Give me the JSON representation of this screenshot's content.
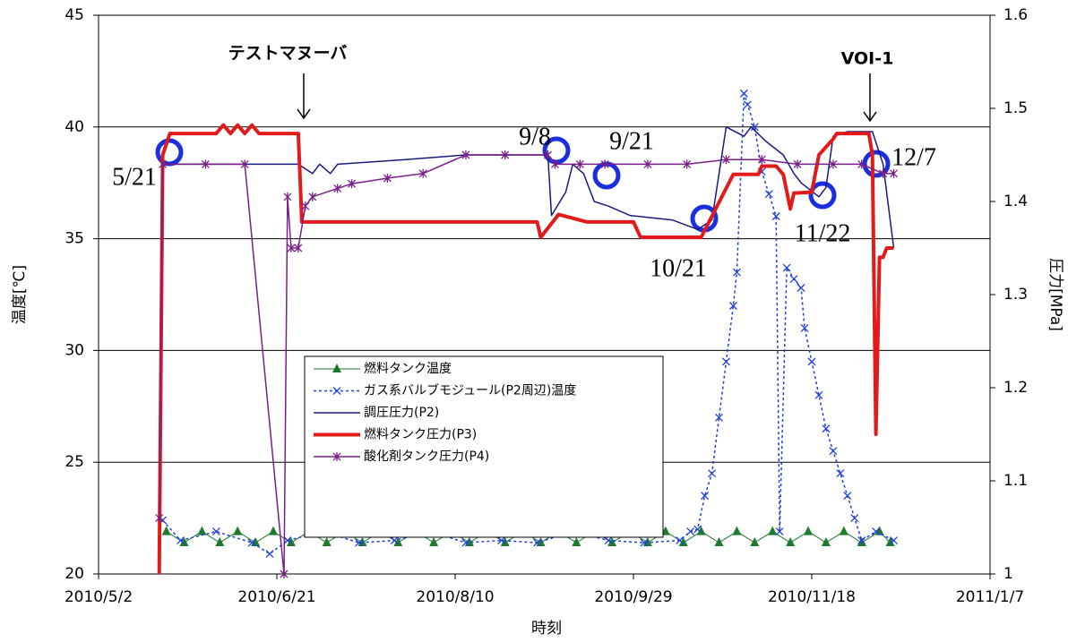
{
  "chart_data": {
    "type": "line",
    "xlabel": "時刻",
    "ylabel": "温度[℃]",
    "y2label": "圧力[MPa]",
    "xlim": [
      "2010/5/2",
      "2011/1/7"
    ],
    "xticks": [
      "2010/5/2",
      "2010/6/21",
      "2010/8/10",
      "2010/9/29",
      "2010/11/18",
      "2011/1/7"
    ],
    "ylim": [
      20,
      45
    ],
    "yticks": [
      20,
      25,
      30,
      35,
      40,
      45
    ],
    "y2lim": [
      1,
      1.6
    ],
    "y2ticks": [
      1,
      1.1,
      1.2,
      1.3,
      1.4,
      1.5,
      1.6
    ],
    "grid": true,
    "legend": "center",
    "annotations": [
      {
        "text": "テストマヌーバ"
      },
      {
        "text": "VOI-1"
      },
      {
        "text": "5/21"
      },
      {
        "text": "9/8"
      },
      {
        "text": "9/21"
      },
      {
        "text": "10/21"
      },
      {
        "text": "11/22"
      },
      {
        "text": "12/7"
      }
    ],
    "series": [
      {
        "name": "燃料タンク温度",
        "color": "#1e7a2e",
        "marker": "triangle",
        "dash": "solid",
        "width": 1,
        "axis": "y",
        "x": [
          "2010/5/21",
          "2010/5/26",
          "2010/5/31",
          "2010/6/5",
          "2010/6/10",
          "2010/6/15",
          "2010/6/20",
          "2010/6/25",
          "2010/6/30",
          "2010/7/5",
          "2010/7/10",
          "2010/7/15",
          "2010/7/20",
          "2010/7/25",
          "2010/7/30",
          "2010/8/4",
          "2010/8/9",
          "2010/8/14",
          "2010/8/19",
          "2010/8/24",
          "2010/8/29",
          "2010/9/3",
          "2010/9/8",
          "2010/9/13",
          "2010/9/18",
          "2010/9/23",
          "2010/9/28",
          "2010/10/3",
          "2010/10/8",
          "2010/10/13",
          "2010/10/18",
          "2010/10/23",
          "2010/10/28",
          "2010/11/2",
          "2010/11/7",
          "2010/11/12",
          "2010/11/17",
          "2010/11/22",
          "2010/11/27",
          "2010/12/2",
          "2010/12/7",
          "2010/12/10"
        ],
        "values": [
          21.9,
          21.4,
          21.9,
          21.4,
          21.9,
          21.4,
          21.9,
          21.4,
          21.9,
          21.4,
          21.9,
          21.4,
          21.9,
          21.4,
          21.9,
          21.4,
          21.9,
          21.4,
          21.9,
          21.4,
          21.9,
          21.4,
          21.9,
          21.4,
          21.9,
          21.4,
          21.9,
          21.4,
          21.9,
          21.4,
          21.9,
          21.4,
          21.9,
          21.4,
          21.9,
          21.4,
          21.9,
          21.4,
          21.9,
          21.4,
          21.9,
          21.4
        ]
      },
      {
        "name": "ガス系バルブモジュール(P2周辺)温度",
        "color": "#1f3fd6",
        "marker": "x",
        "dash": "dotted",
        "width": 1.5,
        "axis": "y",
        "x": [
          "2010/5/20",
          "2010/5/25",
          "2010/6/4",
          "2010/6/14",
          "2010/6/19",
          "2010/6/24",
          "2010/7/4",
          "2010/7/14",
          "2010/7/24",
          "2010/8/3",
          "2010/8/13",
          "2010/8/23",
          "2010/9/2",
          "2010/9/12",
          "2010/9/22",
          "2010/10/2",
          "2010/10/12",
          "2010/10/15",
          "2010/10/17",
          "2010/10/19",
          "2010/10/21",
          "2010/10/23",
          "2010/10/25",
          "2010/10/27",
          "2010/10/28",
          "2010/10/30",
          "2010/10/31",
          "2010/11/2",
          "2010/11/4",
          "2010/11/6",
          "2010/11/8",
          "2010/11/9",
          "2010/11/11",
          "2010/11/13",
          "2010/11/15",
          "2010/11/16",
          "2010/11/18",
          "2010/11/20",
          "2010/11/22",
          "2010/11/24",
          "2010/11/26",
          "2010/11/28",
          "2010/11/30",
          "2010/12/2",
          "2010/12/6",
          "2010/12/11"
        ],
        "values": [
          22.4,
          21.5,
          21.9,
          21.4,
          20.9,
          21.5,
          21.9,
          21.4,
          21.5,
          21.9,
          21.4,
          21.5,
          21.4,
          21.9,
          21.5,
          21.4,
          21.5,
          21.9,
          22,
          23.5,
          24.5,
          27,
          29.5,
          32,
          33.5,
          41.5,
          41,
          40,
          38,
          37,
          36,
          21.9,
          33.7,
          33.2,
          32.8,
          31,
          29.5,
          28,
          26.5,
          25.5,
          24.5,
          23.5,
          22.5,
          21.5,
          21.9,
          21.5
        ]
      },
      {
        "name": "調圧圧力(P2)",
        "color": "#1a1a80",
        "marker": "none",
        "dash": "solid",
        "width": 1.5,
        "axis": "y2",
        "x": [
          "2010/5/19",
          "2010/5/20",
          "2010/6/27",
          "2010/7/1",
          "2010/7/3",
          "2010/7/6",
          "2010/7/8",
          "2010/7/27",
          "2010/8/13",
          "2010/9/5",
          "2010/9/6",
          "2010/9/10",
          "2010/9/12",
          "2010/9/15",
          "2010/9/18",
          "2010/9/22",
          "2010/9/28",
          "2010/10/10",
          "2010/10/17",
          "2010/10/21",
          "2010/10/25",
          "2010/10/30",
          "2010/11/1",
          "2010/11/5",
          "2010/11/10",
          "2010/11/13",
          "2010/11/15",
          "2010/11/20",
          "2010/11/22",
          "2010/11/24",
          "2010/11/28",
          "2010/12/5",
          "2010/12/8",
          "2010/12/11"
        ],
        "values": [
          1.0,
          1.44,
          1.44,
          1.43,
          1.44,
          1.43,
          1.44,
          1.445,
          1.45,
          1.45,
          1.385,
          1.41,
          1.44,
          1.43,
          1.4,
          1.395,
          1.385,
          1.38,
          1.37,
          1.38,
          1.48,
          1.47,
          1.48,
          1.465,
          1.45,
          1.43,
          1.42,
          1.405,
          1.415,
          1.47,
          1.475,
          1.475,
          1.44,
          1.35
        ]
      },
      {
        "name": "燃料タンク圧力(P3)",
        "color": "#e31a1a",
        "marker": "none",
        "dash": "solid",
        "width": 4,
        "axis": "y2",
        "x": [
          "2010/5/19",
          "2010/5/20",
          "2010/5/22",
          "2010/6/4",
          "2010/6/6",
          "2010/6/8",
          "2010/6/10",
          "2010/6/12",
          "2010/6/14",
          "2010/6/16",
          "2010/6/27",
          "2010/6/28",
          "2010/9/2",
          "2010/9/3",
          "2010/9/8",
          "2010/9/16",
          "2010/9/29",
          "2010/10/1",
          "2010/10/18",
          "2010/10/27",
          "2010/11/3",
          "2010/11/4",
          "2010/11/8",
          "2010/11/10",
          "2010/11/12",
          "2010/11/13",
          "2010/11/18",
          "2010/11/20",
          "2010/11/24",
          "2010/11/25",
          "2010/12/4",
          "2010/12/5",
          "2010/12/6",
          "2010/12/7",
          "2010/12/8",
          "2010/12/9",
          "2010/12/11"
        ],
        "values": [
          1.0,
          1.45,
          1.473,
          1.473,
          1.482,
          1.473,
          1.482,
          1.473,
          1.482,
          1.473,
          1.473,
          1.378,
          1.378,
          1.3615,
          1.386,
          1.378,
          1.378,
          1.3615,
          1.3615,
          1.429,
          1.429,
          1.438,
          1.438,
          1.429,
          1.392,
          1.409,
          1.41,
          1.45,
          1.467,
          1.473,
          1.473,
          1.45,
          1.15,
          1.34,
          1.34,
          1.35,
          1.35
        ]
      },
      {
        "name": "酸化剤タンク圧力(P4)",
        "color": "#7a1f8a",
        "marker": "asterisk",
        "dash": "solid",
        "width": 1.5,
        "axis": "y2",
        "x": [
          "2010/5/19",
          "2010/5/20",
          "2010/6/1",
          "2010/6/12",
          "2010/6/23",
          "2010/6/24",
          "2010/6/25",
          "2010/6/27",
          "2010/6/29",
          "2010/7/1",
          "2010/7/8",
          "2010/7/12",
          "2010/7/22",
          "2010/8/1",
          "2010/8/13",
          "2010/8/24",
          "2010/9/5",
          "2010/9/7",
          "2010/9/14",
          "2010/9/21",
          "2010/10/3",
          "2010/10/14",
          "2010/10/25",
          "2010/11/4",
          "2010/11/14",
          "2010/11/24",
          "2010/12/2",
          "2010/12/8",
          "2010/12/11"
        ],
        "values": [
          1.06,
          1.44,
          1.44,
          1.44,
          1.0,
          1.405,
          1.35,
          1.35,
          1.395,
          1.405,
          1.414,
          1.419,
          1.425,
          1.43,
          1.45,
          1.45,
          1.45,
          1.44,
          1.44,
          1.44,
          1.44,
          1.44,
          1.445,
          1.445,
          1.44,
          1.44,
          1.44,
          1.43,
          1.43
        ]
      }
    ]
  }
}
